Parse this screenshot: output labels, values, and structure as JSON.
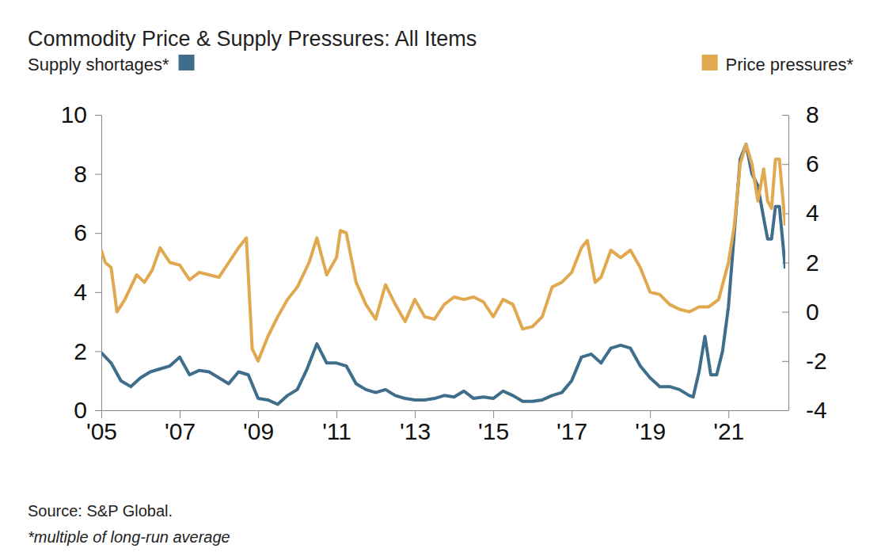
{
  "chart_data": {
    "type": "line",
    "title": "Commodity Price & Supply Pressures: All Items",
    "annotations": [
      "Source: S&P Global.",
      "*multiple of long-run average"
    ],
    "legend": "top",
    "xlim": [
      2005,
      2022.45
    ],
    "xticks": [
      {
        "value": 2005,
        "label": "'05"
      },
      {
        "value": 2007,
        "label": "'07"
      },
      {
        "value": 2009,
        "label": "'09"
      },
      {
        "value": 2011,
        "label": "'11"
      },
      {
        "value": 2013,
        "label": "'13"
      },
      {
        "value": 2015,
        "label": "'15"
      },
      {
        "value": 2017,
        "label": "'17"
      },
      {
        "value": 2019,
        "label": "'19"
      },
      {
        "value": 2021,
        "label": "'21"
      }
    ],
    "ylim": [
      0,
      10
    ],
    "yticks": [
      0,
      2,
      4,
      6,
      8,
      10
    ],
    "y2lim": [
      -4,
      8
    ],
    "y2ticks": [
      -4,
      -2,
      0,
      2,
      4,
      6,
      8
    ],
    "series": [
      {
        "name": "Supply shortages*",
        "color": "#3f6e8c",
        "x": [
          2005.0,
          2005.25,
          2005.5,
          2005.75,
          2006.0,
          2006.25,
          2006.5,
          2006.75,
          2007.0,
          2007.25,
          2007.5,
          2007.75,
          2008.0,
          2008.25,
          2008.5,
          2008.75,
          2009.0,
          2009.25,
          2009.5,
          2009.75,
          2010.0,
          2010.25,
          2010.5,
          2010.75,
          2011.0,
          2011.25,
          2011.5,
          2011.75,
          2012.0,
          2012.25,
          2012.5,
          2012.75,
          2013.0,
          2013.25,
          2013.5,
          2013.75,
          2014.0,
          2014.25,
          2014.5,
          2014.75,
          2015.0,
          2015.25,
          2015.5,
          2015.75,
          2016.0,
          2016.25,
          2016.5,
          2016.75,
          2017.0,
          2017.25,
          2017.5,
          2017.75,
          2018.0,
          2018.25,
          2018.5,
          2018.75,
          2019.0,
          2019.25,
          2019.5,
          2019.75,
          2020.0,
          2020.1,
          2020.25,
          2020.4,
          2020.55,
          2020.7,
          2020.85,
          2021.0,
          2021.15,
          2021.3,
          2021.45,
          2021.6,
          2021.75,
          2021.9,
          2022.0,
          2022.1,
          2022.2,
          2022.3,
          2022.45
        ],
        "values": [
          1.95,
          1.6,
          1.0,
          0.8,
          1.1,
          1.3,
          1.4,
          1.5,
          1.8,
          1.2,
          1.35,
          1.3,
          1.1,
          0.9,
          1.3,
          1.2,
          0.4,
          0.35,
          0.2,
          0.5,
          0.7,
          1.4,
          2.25,
          1.6,
          1.6,
          1.5,
          0.9,
          0.7,
          0.6,
          0.7,
          0.5,
          0.4,
          0.35,
          0.35,
          0.4,
          0.5,
          0.45,
          0.65,
          0.4,
          0.45,
          0.4,
          0.65,
          0.5,
          0.3,
          0.3,
          0.35,
          0.5,
          0.6,
          1.0,
          1.8,
          1.9,
          1.6,
          2.1,
          2.2,
          2.1,
          1.5,
          1.1,
          0.8,
          0.8,
          0.7,
          0.5,
          0.45,
          1.3,
          2.5,
          1.2,
          1.2,
          2.0,
          3.5,
          6.0,
          8.5,
          9.0,
          8.0,
          7.6,
          6.5,
          5.8,
          5.8,
          6.9,
          6.9,
          4.8
        ]
      },
      {
        "name": "Price pressures*",
        "color": "#e1a94f",
        "axis": "y2",
        "x": [
          2005.0,
          2005.1,
          2005.25,
          2005.4,
          2005.6,
          2005.9,
          2006.1,
          2006.3,
          2006.5,
          2006.75,
          2007.0,
          2007.25,
          2007.5,
          2007.75,
          2008.0,
          2008.25,
          2008.5,
          2008.7,
          2008.85,
          2009.0,
          2009.25,
          2009.5,
          2009.75,
          2010.0,
          2010.3,
          2010.5,
          2010.75,
          2011.0,
          2011.1,
          2011.25,
          2011.5,
          2011.75,
          2012.0,
          2012.25,
          2012.5,
          2012.75,
          2013.0,
          2013.25,
          2013.5,
          2013.75,
          2014.0,
          2014.25,
          2014.5,
          2014.75,
          2015.0,
          2015.25,
          2015.5,
          2015.75,
          2016.0,
          2016.25,
          2016.5,
          2016.75,
          2017.0,
          2017.25,
          2017.4,
          2017.6,
          2017.75,
          2018.0,
          2018.25,
          2018.5,
          2018.75,
          2019.0,
          2019.25,
          2019.5,
          2019.75,
          2020.0,
          2020.25,
          2020.5,
          2020.75,
          2021.0,
          2021.15,
          2021.3,
          2021.45,
          2021.6,
          2021.75,
          2021.9,
          2022.0,
          2022.1,
          2022.2,
          2022.3,
          2022.45
        ],
        "values": [
          2.5,
          2.0,
          1.8,
          0.0,
          0.5,
          1.5,
          1.2,
          1.7,
          2.6,
          2.0,
          1.9,
          1.3,
          1.6,
          1.5,
          1.4,
          2.0,
          2.6,
          3.0,
          -1.5,
          -2.0,
          -1.0,
          -0.2,
          0.5,
          1.0,
          2.0,
          3.0,
          1.5,
          2.2,
          3.3,
          3.2,
          1.2,
          0.3,
          -0.3,
          1.1,
          0.3,
          -0.4,
          0.5,
          -0.2,
          -0.3,
          0.3,
          0.6,
          0.5,
          0.6,
          0.4,
          -0.2,
          0.5,
          0.3,
          -0.7,
          -0.6,
          -0.2,
          1.0,
          1.2,
          1.6,
          2.6,
          2.9,
          1.2,
          1.4,
          2.5,
          2.2,
          2.5,
          1.8,
          0.8,
          0.7,
          0.3,
          0.1,
          0.0,
          0.2,
          0.2,
          0.5,
          2.0,
          3.5,
          6.0,
          6.8,
          6.0,
          4.5,
          5.8,
          4.5,
          4.2,
          6.2,
          6.2,
          3.5
        ]
      }
    ]
  }
}
